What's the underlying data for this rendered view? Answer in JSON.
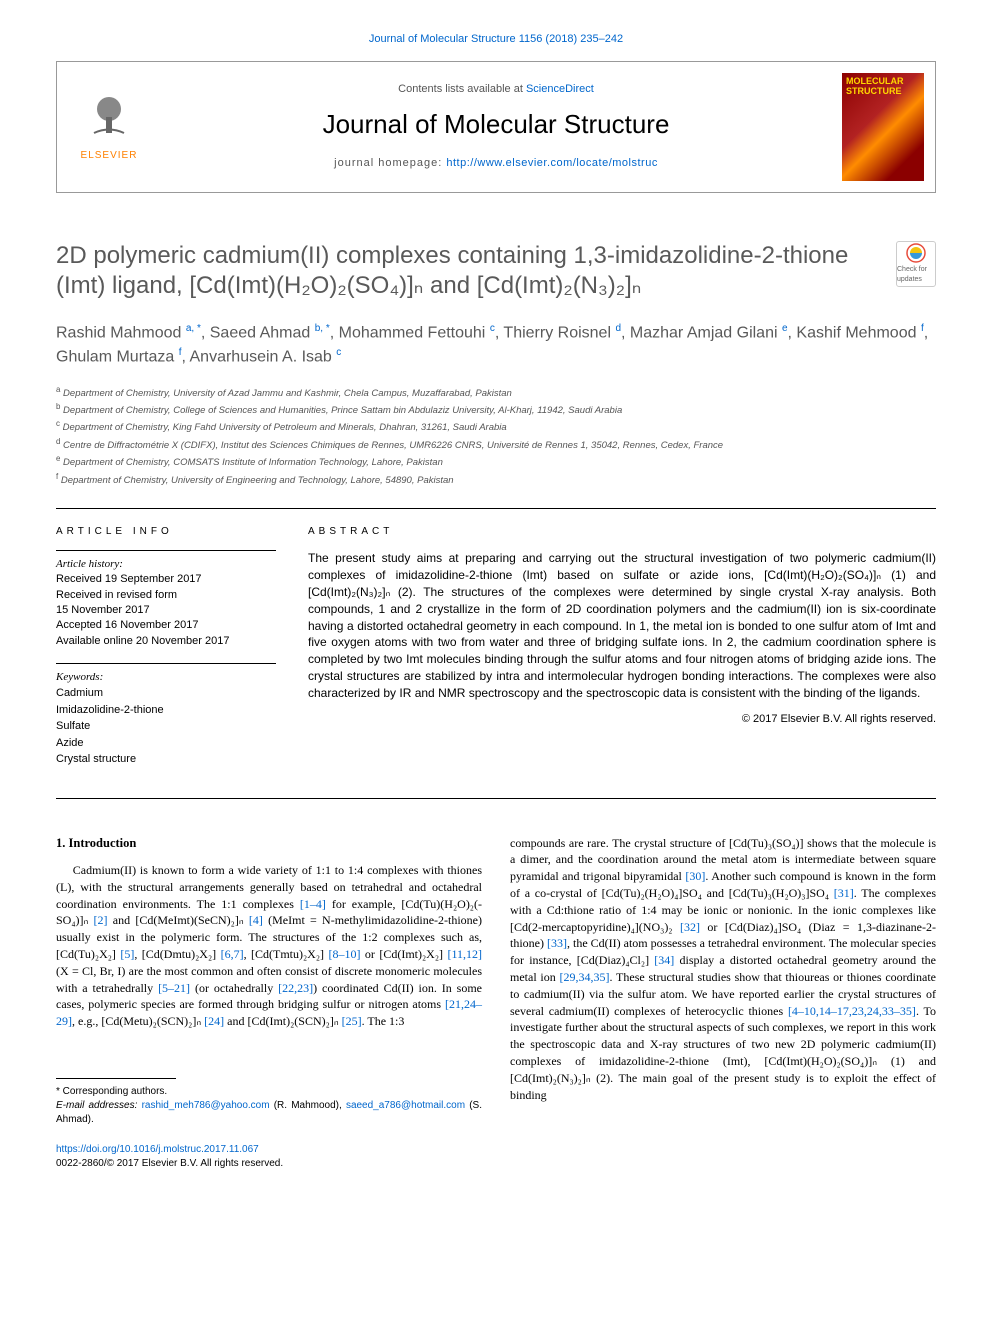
{
  "colors": {
    "link": "#0066cc",
    "title_gray": "#595959",
    "elsevier_orange": "#ff8000",
    "cover_bg": "#8b0000",
    "cover_text": "#ffd700"
  },
  "typography": {
    "body_family": "Georgia, serif",
    "sans_family": "Arial, sans-serif",
    "title_size": 24,
    "journal_size": 26,
    "authors_size": 16,
    "abstract_size": 12
  },
  "header": {
    "top_citation": "Journal of Molecular Structure 1156 (2018) 235–242",
    "contents_line_prefix": "Contents lists available at ",
    "contents_link": "ScienceDirect",
    "journal_name": "Journal of Molecular Structure",
    "homepage_label": "journal homepage: ",
    "homepage_url": "http://www.elsevier.com/locate/molstruc",
    "elsevier_text": "ELSEVIER",
    "cover_text_1": "MOLECULAR",
    "cover_text_2": "STRUCTURE"
  },
  "check": {
    "label": "Check for updates"
  },
  "article": {
    "title_html": "2D polymeric cadmium(II) complexes containing 1,3-imidazolidine-2-thione (Imt) ligand, [Cd(Imt)(H₂O)₂(SO₄)]ₙ and [Cd(Imt)₂(N₃)₂]ₙ",
    "authors_html": "Rashid Mahmood <sup><a>a, *</a></sup>, Saeed Ahmad <sup><a>b, *</a></sup>, Mohammed Fettouhi <sup><a>c</a></sup>, Thierry Roisnel <sup><a>d</a></sup>, Mazhar Amjad Gilani <sup><a>e</a></sup>, Kashif Mehmood <sup><a>f</a></sup>, Ghulam Murtaza <sup><a>f</a></sup>, Anvarhusein A. Isab <sup><a>c</a></sup>",
    "affiliations": [
      {
        "sup": "a",
        "text": "Department of Chemistry, University of Azad Jammu and Kashmir, Chela Campus, Muzaffarabad, Pakistan"
      },
      {
        "sup": "b",
        "text": "Department of Chemistry, College of Sciences and Humanities, Prince Sattam bin Abdulaziz University, Al-Kharj, 11942, Saudi Arabia"
      },
      {
        "sup": "c",
        "text": "Department of Chemistry, King Fahd University of Petroleum and Minerals, Dhahran, 31261, Saudi Arabia"
      },
      {
        "sup": "d",
        "text": "Centre de Diffractométrie X (CDIFX), Institut des Sciences Chimiques de Rennes, UMR6226 CNRS, Université de Rennes 1, 35042, Rennes, Cedex, France"
      },
      {
        "sup": "e",
        "text": "Department of Chemistry, COMSATS Institute of Information Technology, Lahore, Pakistan"
      },
      {
        "sup": "f",
        "text": "Department of Chemistry, University of Engineering and Technology, Lahore, 54890, Pakistan"
      }
    ]
  },
  "info": {
    "heading": "ARTICLE INFO",
    "history_label": "Article history:",
    "history_lines": [
      "Received 19 September 2017",
      "Received in revised form",
      "15 November 2017",
      "Accepted 16 November 2017",
      "Available online 20 November 2017"
    ],
    "keywords_label": "Keywords:",
    "keywords": [
      "Cadmium",
      "Imidazolidine-2-thione",
      "Sulfate",
      "Azide",
      "Crystal structure"
    ]
  },
  "abstract": {
    "heading": "ABSTRACT",
    "text": "The present study aims at preparing and carrying out the structural investigation of two polymeric cadmium(II) complexes of imidazolidine-2-thione (Imt) based on sulfate or azide ions, [Cd(Imt)(H₂O)₂(SO₄)]ₙ (1) and [Cd(Imt)₂(N₃)₂]ₙ (2). The structures of the complexes were determined by single crystal X-ray analysis. Both compounds, 1 and 2 crystallize in the form of 2D coordination polymers and the cadmium(II) ion is six-coordinate having a distorted octahedral geometry in each compound. In 1, the metal ion is bonded to one sulfur atom of Imt and five oxygen atoms with two from water and three of bridging sulfate ions. In 2, the cadmium coordination sphere is completed by two Imt molecules binding through the sulfur atoms and four nitrogen atoms of bridging azide ions. The crystal structures are stabilized by intra and intermolecular hydrogen bonding interactions. The complexes were also characterized by IR and NMR spectroscopy and the spectroscopic data is consistent with the binding of the ligands.",
    "copyright": "© 2017 Elsevier B.V. All rights reserved."
  },
  "body": {
    "section_heading": "1. Introduction",
    "col1": "Cadmium(II) is known to form a wide variety of 1:1 to 1:4 complexes with thiones (L), with the structural arrangements generally based on tetrahedral and octahedral coordination environments. The 1:1 complexes [1–4] for example, [Cd(Tu)(H₂O)₂(-SO₄)]ₙ [2] and [Cd(MeImt)(SeCN)₂]ₙ [4] (MeImt = N-methylimidazolidine-2-thione) usually exist in the polymeric form. The structures of the 1:2 complexes such as, [Cd(Tu)₂X₂] [5], [Cd(Dmtu)₂X₂] [6,7], [Cd(Tmtu)₂X₂] [8–10] or [Cd(Imt)₂X₂] [11,12] (X = Cl, Br, I) are the most common and often consist of discrete monomeric molecules with a tetrahedrally [5–21] (or octahedrally [22,23]) coordinated Cd(II) ion. In some cases, polymeric species are formed through bridging sulfur or nitrogen atoms [21,24–29], e.g., [Cd(Metu)₂(SCN)₂]ₙ [24] and [Cd(Imt)₂(SCN)₂]ₙ [25]. The 1:3",
    "col2": "compounds are rare. The crystal structure of [Cd(Tu)₃(SO₄)] shows that the molecule is a dimer, and the coordination around the metal atom is intermediate between square pyramidal and trigonal bipyramidal [30]. Another such compound is known in the form of a co-crystal of [Cd(Tu)₂(H₂O)₄]SO₄ and [Cd(Tu)₃(H₂O)₃]SO₄ [31]. The complexes with a Cd:thione ratio of 1:4 may be ionic or nonionic. In the ionic complexes like [Cd(2-mercaptopyridine)₄](NO₃)₂ [32] or [Cd(Diaz)₄]SO₄ (Diaz = 1,3-diazinane-2-thione) [33], the Cd(II) atom possesses a tetrahedral environment. The molecular species for instance, [Cd(Diaz)₄Cl₂] [34] display a distorted octahedral geometry around the metal ion [29,34,35]. These structural studies show that thioureas or thiones coordinate to cadmium(II) via the sulfur atom. We have reported earlier the crystal structures of several cadmium(II) complexes of heterocyclic thiones [4–10,14–17,23,24,33–35]. To investigate further about the structural aspects of such complexes, we report in this work the spectroscopic data and X-ray structures of two new 2D polymeric cadmium(II) complexes of imidazolidine-2-thione (Imt), [Cd(Imt)(H₂O)₂(SO₄)]ₙ (1) and [Cd(Imt)₂(N₃)₂]ₙ (2). The main goal of the present study is to exploit the effect of binding"
  },
  "footnotes": {
    "star_label": "* Corresponding authors.",
    "email_label": "E-mail addresses: ",
    "email1": "rashid_meh786@yahoo.com",
    "name1": " (R. Mahmood), ",
    "email2": "saeed_a786@hotmail.com",
    "name2": " (S. Ahmad)."
  },
  "doi": {
    "url": "https://doi.org/10.1016/j.molstruc.2017.11.067",
    "issn_line": "0022-2860/© 2017 Elsevier B.V. All rights reserved."
  }
}
